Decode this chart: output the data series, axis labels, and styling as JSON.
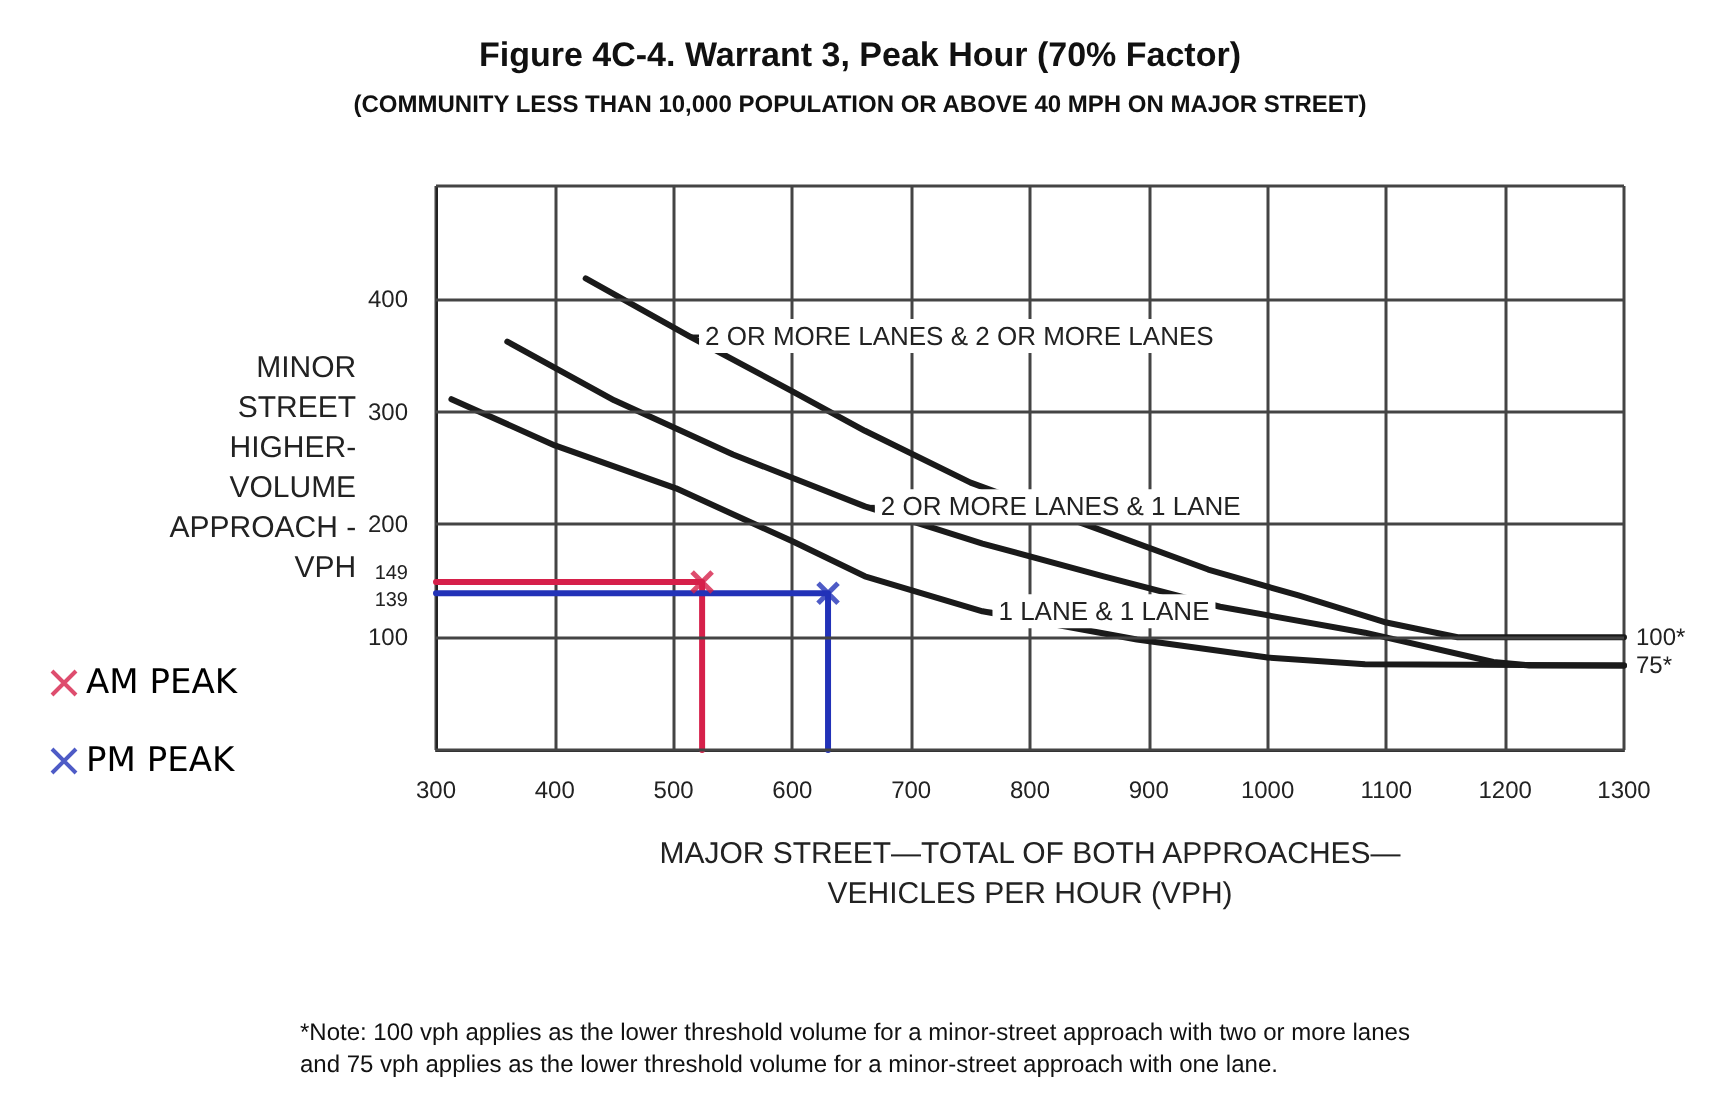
{
  "chart_data": {
    "type": "line",
    "title": "Figure 4C-4. Warrant 3, Peak Hour (70% Factor)",
    "subtitle": "(COMMUNITY LESS THAN 10,000 POPULATION OR ABOVE 40 MPH ON MAJOR STREET)",
    "xlabel": "MAJOR STREET—TOTAL OF BOTH APPROACHES—\nVEHICLES PER HOUR (VPH)",
    "ylabel": "MINOR\nSTREET\nHIGHER-\nVOLUME\nAPPROACH -\nVPH",
    "xlim": [
      300,
      1300
    ],
    "xticks": [
      300,
      400,
      500,
      600,
      700,
      800,
      900,
      1000,
      1100,
      1200,
      1300
    ],
    "ylim": [
      0,
      500
    ],
    "yticks": [
      {
        "value": 0,
        "label": null
      },
      100,
      139,
      149,
      200,
      300,
      400,
      {
        "value": 500,
        "label": null
      }
    ],
    "y2lim": [
      0,
      500
    ],
    "y2ticks": [
      {
        "value": 75,
        "label": "75*"
      },
      {
        "value": 100,
        "label": "100*"
      }
    ],
    "grid": true,
    "legend": "left",
    "series": [
      {
        "name": "2 OR MORE LANES & 2 OR MORE LANES",
        "color": "#1a1a1a",
        "marker": "none",
        "x": [
          426,
          513,
          600,
          661,
          750,
          862,
          950,
          1026,
          1100,
          1160,
          1300
        ],
        "values": [
          418,
          367,
          318,
          283,
          237,
          194,
          160,
          137,
          113,
          100,
          100
        ]
      },
      {
        "name": "2 OR MORE LANES & 1 LANE",
        "color": "#1a1a1a",
        "marker": "none",
        "x": [
          360,
          450,
          550,
          661,
          760,
          862,
          960,
          1082,
          1190,
          1220,
          1300
        ],
        "values": [
          362,
          310,
          262,
          216,
          183,
          154,
          127,
          104,
          78,
          75,
          75
        ]
      },
      {
        "name": "1 LANE & 1 LANE",
        "color": "#1a1a1a",
        "marker": "none",
        "x": [
          313,
          400,
          502,
          600,
          661,
          760,
          890,
          1000,
          1082,
          1300
        ],
        "values": [
          311,
          270,
          232,
          185,
          154,
          123,
          98,
          82,
          76,
          75
        ]
      },
      {
        "type": "line",
        "color": "#d6204a",
        "marker": "none",
        "x": [
          300,
          524,
          524
        ],
        "values": [
          149,
          149,
          0
        ]
      },
      {
        "type": "line",
        "color": "#2232b8",
        "marker": "none",
        "x": [
          300,
          630,
          630
        ],
        "values": [
          139,
          139,
          0
        ]
      },
      {
        "name": "AM PEAK",
        "type": "scatter",
        "color": "#d6204a",
        "marker": "cross",
        "x": [
          524
        ],
        "values": [
          149
        ]
      },
      {
        "name": "PM PEAK",
        "type": "scatter",
        "color": "#2232b8",
        "marker": "cross",
        "x": [
          630
        ],
        "values": [
          139
        ]
      }
    ],
    "annotations": [
      "*Note: 100 vph applies as the lower threshold volume for a minor-street approach with two or more lanes and 75 vph applies as the lower threshold volume for a minor-street approach with one lane."
    ]
  }
}
